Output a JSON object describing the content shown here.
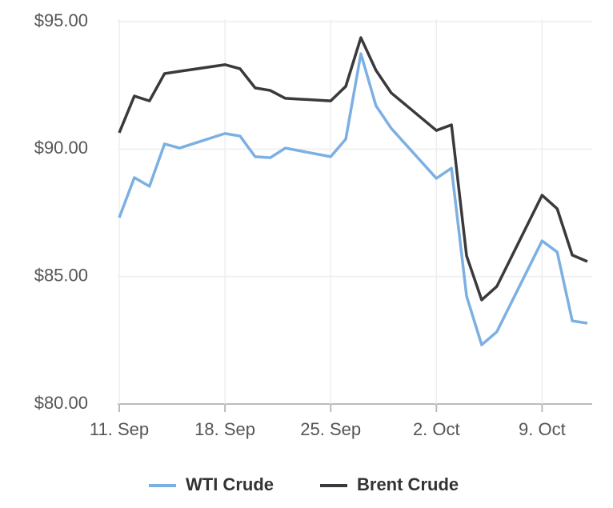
{
  "chart_data": {
    "type": "line",
    "x": [
      "11. Sep",
      "12. Sep",
      "13. Sep",
      "14. Sep",
      "15. Sep",
      "18. Sep",
      "19. Sep",
      "20. Sep",
      "21. Sep",
      "22. Sep",
      "25. Sep",
      "26. Sep",
      "27. Sep",
      "28. Sep",
      "29. Sep",
      "2. Oct",
      "3. Oct",
      "4. Oct",
      "5. Oct",
      "6. Oct",
      "9. Oct",
      "10. Oct",
      "11. Oct",
      "12. Oct"
    ],
    "series": [
      {
        "name": "WTI Crude",
        "color": "#7cb0e2",
        "values": [
          87.31,
          88.88,
          88.54,
          90.2,
          90.04,
          90.61,
          90.51,
          89.7,
          89.66,
          90.04,
          89.7,
          90.39,
          93.74,
          91.7,
          90.82,
          88.85,
          89.25,
          84.23,
          82.32,
          82.83,
          86.4,
          85.96,
          83.26,
          83.17
        ]
      },
      {
        "name": "Brent Crude",
        "color": "#3a3a3e",
        "values": [
          90.64,
          92.08,
          91.89,
          92.96,
          93.05,
          93.31,
          93.15,
          92.4,
          92.3,
          91.99,
          91.89,
          92.46,
          94.37,
          93.09,
          92.21,
          90.73,
          90.95,
          85.81,
          84.08,
          84.61,
          88.19,
          87.66,
          85.84,
          85.59
        ]
      }
    ],
    "xlim": [
      "11. Sep",
      "12. Oct"
    ],
    "xticks": [
      "11. Sep",
      "18. Sep",
      "25. Sep",
      "2. Oct",
      "9. Oct"
    ],
    "ylim": [
      80,
      95
    ],
    "yticks": [
      {
        "value": 80,
        "label": "$80.00"
      },
      {
        "value": 85,
        "label": "$85.00"
      },
      {
        "value": 90,
        "label": "$90.00"
      },
      {
        "value": 95,
        "label": "$95.00"
      }
    ],
    "grid": true
  }
}
